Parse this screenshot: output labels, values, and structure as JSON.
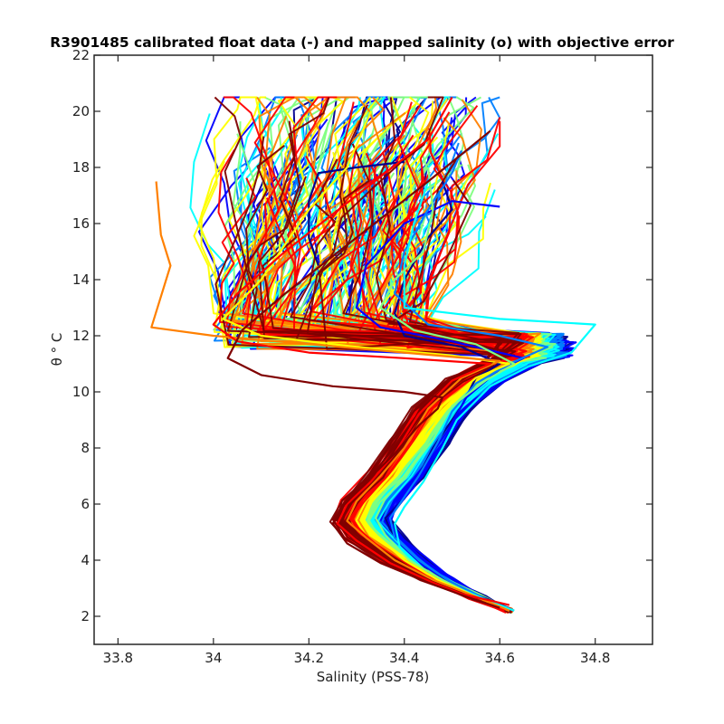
{
  "chart_data": {
    "type": "line",
    "title": "R3901485 calibrated float data (-) and mapped salinity (o) with objective error",
    "xlabel": "Salinity (PSS-78)",
    "ylabel": "θ ° C",
    "xlim": [
      33.75,
      34.92
    ],
    "ylim": [
      1.0,
      22.0
    ],
    "xticks": [
      33.8,
      34,
      34.2,
      34.4,
      34.6,
      34.8
    ],
    "xtick_labels": [
      "33.8",
      "34",
      "34.2",
      "34.4",
      "34.6",
      "34.8"
    ],
    "yticks": [
      2,
      4,
      6,
      8,
      10,
      12,
      14,
      16,
      18,
      20,
      22
    ],
    "ytick_labels": [
      "2",
      "4",
      "6",
      "8",
      "10",
      "12",
      "14",
      "16",
      "18",
      "20",
      "22"
    ],
    "grid": false,
    "colormap": "jet",
    "colors": [
      "#00008f",
      "#0000ff",
      "#0080ff",
      "#00ffff",
      "#80ff80",
      "#ffff00",
      "#ff8000",
      "#ff0000",
      "#800000"
    ],
    "profile_count": 220,
    "series": [
      {
        "color": "#00008f",
        "points": [
          [
            34.63,
            2.2
          ],
          [
            34.59,
            2.5
          ],
          [
            34.52,
            3.0
          ],
          [
            34.45,
            3.6
          ],
          [
            34.4,
            4.4
          ],
          [
            34.37,
            5.1
          ],
          [
            34.36,
            5.5
          ],
          [
            34.4,
            6.2
          ],
          [
            34.43,
            7.0
          ],
          [
            34.46,
            8.0
          ],
          [
            34.5,
            9.0
          ],
          [
            34.52,
            9.5
          ],
          [
            34.55,
            10.5
          ],
          [
            34.6,
            11.0
          ],
          [
            34.52,
            11.6
          ],
          [
            34.4,
            12.0
          ],
          [
            34.38,
            12.8
          ],
          [
            34.4,
            14.0
          ],
          [
            34.45,
            15.5
          ],
          [
            34.5,
            16.5
          ],
          [
            34.48,
            17.5
          ]
        ]
      },
      {
        "color": "#00008f",
        "points": [
          [
            34.22,
            14.5
          ],
          [
            34.2,
            15.5
          ],
          [
            34.2,
            16.8
          ],
          [
            34.22,
            17.8
          ],
          [
            34.3,
            18.0
          ],
          [
            34.4,
            18.2
          ]
        ]
      },
      {
        "color": "#0000ff",
        "points": [
          [
            34.62,
            2.2
          ],
          [
            34.57,
            2.6
          ],
          [
            34.5,
            3.2
          ],
          [
            34.44,
            3.8
          ],
          [
            34.39,
            4.6
          ],
          [
            34.37,
            5.3
          ],
          [
            34.38,
            5.8
          ],
          [
            34.42,
            6.6
          ],
          [
            34.45,
            7.6
          ],
          [
            34.49,
            8.6
          ],
          [
            34.53,
            9.8
          ],
          [
            34.6,
            10.8
          ],
          [
            34.65,
            11.2
          ],
          [
            34.5,
            11.8
          ],
          [
            34.35,
            12.3
          ],
          [
            34.3,
            13.0
          ],
          [
            34.32,
            14.5
          ],
          [
            34.4,
            16.0
          ],
          [
            34.5,
            16.8
          ],
          [
            34.6,
            16.6
          ]
        ]
      },
      {
        "color": "#0080ff",
        "points": [
          [
            34.62,
            2.2
          ],
          [
            34.56,
            2.7
          ],
          [
            34.49,
            3.3
          ],
          [
            34.43,
            4.0
          ],
          [
            34.38,
            4.8
          ],
          [
            34.37,
            5.5
          ],
          [
            34.39,
            6.0
          ],
          [
            34.43,
            7.0
          ],
          [
            34.47,
            8.2
          ],
          [
            34.5,
            9.3
          ],
          [
            34.55,
            10.3
          ],
          [
            34.62,
            11.0
          ],
          [
            34.7,
            11.6
          ],
          [
            34.6,
            12.0
          ],
          [
            34.45,
            12.4
          ],
          [
            34.38,
            13.5
          ],
          [
            34.4,
            15.0
          ],
          [
            34.45,
            16.5
          ],
          [
            34.5,
            17.8
          ],
          [
            34.52,
            18.6
          ]
        ]
      },
      {
        "color": "#00ffff",
        "points": [
          [
            34.63,
            2.2
          ],
          [
            34.57,
            2.6
          ],
          [
            34.5,
            3.1
          ],
          [
            34.44,
            3.7
          ],
          [
            34.39,
            4.5
          ],
          [
            34.38,
            5.3
          ],
          [
            34.4,
            5.9
          ],
          [
            34.44,
            6.8
          ],
          [
            34.48,
            8.0
          ],
          [
            34.51,
            9.0
          ],
          [
            34.58,
            10.2
          ],
          [
            34.66,
            10.9
          ],
          [
            34.75,
            11.4
          ],
          [
            34.8,
            12.4
          ],
          [
            34.6,
            12.6
          ],
          [
            34.4,
            13.0
          ],
          [
            34.4,
            14.5
          ],
          [
            34.42,
            16.0
          ],
          [
            34.45,
            17.5
          ]
        ]
      },
      {
        "color": "#80ff80",
        "points": [
          [
            34.62,
            2.2
          ],
          [
            34.55,
            2.7
          ],
          [
            34.48,
            3.3
          ],
          [
            34.41,
            4.0
          ],
          [
            34.36,
            4.9
          ],
          [
            34.34,
            5.5
          ],
          [
            34.36,
            6.2
          ],
          [
            34.41,
            7.2
          ],
          [
            34.46,
            8.3
          ],
          [
            34.5,
            9.5
          ],
          [
            34.57,
            10.4
          ],
          [
            34.63,
            11.0
          ],
          [
            34.55,
            11.7
          ],
          [
            34.42,
            12.2
          ],
          [
            34.35,
            13.0
          ],
          [
            34.38,
            14.0
          ],
          [
            34.44,
            15.0
          ],
          [
            34.46,
            16.5
          ],
          [
            34.45,
            18.0
          ]
        ]
      },
      {
        "color": "#ffff00",
        "points": [
          [
            34.62,
            2.2
          ],
          [
            34.55,
            2.7
          ],
          [
            34.47,
            3.3
          ],
          [
            34.4,
            4.0
          ],
          [
            34.34,
            4.9
          ],
          [
            34.31,
            5.5
          ],
          [
            34.33,
            6.2
          ],
          [
            34.38,
            7.2
          ],
          [
            34.43,
            8.4
          ],
          [
            34.48,
            9.5
          ],
          [
            34.55,
            10.5
          ],
          [
            34.62,
            11.0
          ],
          [
            34.5,
            11.3
          ],
          [
            34.3,
            11.6
          ],
          [
            34.1,
            12.0
          ],
          [
            34.02,
            12.6
          ],
          [
            34.1,
            14.0
          ],
          [
            34.2,
            16.5
          ],
          [
            34.28,
            18.0
          ],
          [
            34.33,
            20.0
          ]
        ]
      },
      {
        "color": "#ff8000",
        "points": [
          [
            34.62,
            2.2
          ],
          [
            34.55,
            2.7
          ],
          [
            34.46,
            3.3
          ],
          [
            34.38,
            4.0
          ],
          [
            34.32,
            4.8
          ],
          [
            34.28,
            5.4
          ],
          [
            34.3,
            6.1
          ],
          [
            34.35,
            7.0
          ],
          [
            34.4,
            8.0
          ],
          [
            34.45,
            9.4
          ],
          [
            34.52,
            10.5
          ],
          [
            34.6,
            11.1
          ],
          [
            34.4,
            11.4
          ],
          [
            34.2,
            11.7
          ],
          [
            34.0,
            12.0
          ],
          [
            33.87,
            12.3
          ],
          [
            33.91,
            14.5
          ],
          [
            33.89,
            15.6
          ],
          [
            33.88,
            17.5
          ]
        ]
      },
      {
        "color": "#ff0000",
        "points": [
          [
            34.61,
            2.2
          ],
          [
            34.55,
            2.6
          ],
          [
            34.46,
            3.2
          ],
          [
            34.37,
            3.9
          ],
          [
            34.3,
            4.7
          ],
          [
            34.26,
            5.3
          ],
          [
            34.28,
            6.0
          ],
          [
            34.33,
            6.8
          ],
          [
            34.38,
            7.8
          ],
          [
            34.43,
            9.2
          ],
          [
            34.5,
            10.4
          ],
          [
            34.58,
            11.0
          ],
          [
            34.4,
            11.2
          ],
          [
            34.2,
            11.4
          ],
          [
            34.05,
            11.8
          ],
          [
            34.0,
            12.4
          ],
          [
            34.05,
            13.5
          ],
          [
            34.15,
            15.0
          ],
          [
            34.3,
            17.0
          ],
          [
            34.45,
            19.0
          ],
          [
            34.5,
            20.5
          ]
        ]
      },
      {
        "color": "#ff0000",
        "points": [
          [
            34.62,
            2.4
          ],
          [
            34.52,
            2.8
          ],
          [
            34.54,
            2.6
          ]
        ]
      },
      {
        "color": "#800000",
        "points": [
          [
            34.6,
            2.3
          ],
          [
            34.53,
            2.7
          ],
          [
            34.45,
            3.2
          ],
          [
            34.35,
            3.9
          ],
          [
            34.28,
            4.6
          ],
          [
            34.25,
            5.3
          ],
          [
            34.27,
            5.9
          ],
          [
            34.32,
            6.8
          ],
          [
            34.38,
            7.8
          ],
          [
            34.43,
            8.8
          ],
          [
            34.47,
            9.4
          ],
          [
            34.48,
            9.8
          ],
          [
            34.4,
            10.0
          ],
          [
            34.25,
            10.2
          ],
          [
            34.1,
            10.6
          ],
          [
            34.03,
            11.2
          ],
          [
            34.06,
            12.2
          ],
          [
            34.15,
            13.5
          ],
          [
            34.3,
            15.5
          ],
          [
            34.45,
            17.5
          ],
          [
            34.58,
            19.3
          ]
        ]
      }
    ]
  }
}
